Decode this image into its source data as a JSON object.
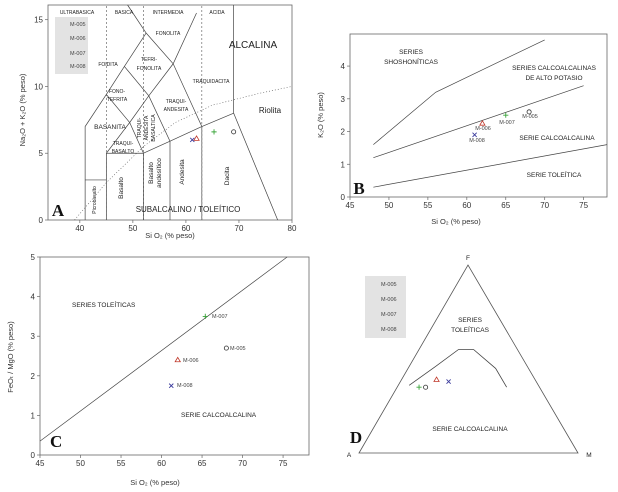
{
  "chart_data": [
    {
      "panel": "A",
      "type": "scatter",
      "xlabel": "Si O₂ (% peso)",
      "ylabel": "Na₂O + K₂O (% peso)",
      "xlim": [
        34,
        80
      ],
      "ylim": [
        0,
        16.1
      ],
      "xticks": [
        40,
        50,
        60,
        70,
        80
      ],
      "yticks": [
        0,
        5,
        10,
        15
      ],
      "legend": {
        "placement": "top-left",
        "entries": [
          "M-005",
          "M-006",
          "M-007",
          "M-008"
        ]
      },
      "header_labels": [
        "ULTRABASICA",
        "BASICA",
        "INTERMEDIA",
        "ACIDA"
      ],
      "fields": [
        "FONOLITA",
        "FOIDITA",
        "TEFRI-",
        "FONOLITA",
        "ALCALINA",
        "TRAQUIDACITA",
        "FONO-",
        "TEFRITA",
        "TRAQUI-",
        "ANDESITA",
        "Riolita",
        "BASANITA",
        "TRAQUI-",
        "BASALTO",
        "TRAQUI-",
        "ANDESITA",
        "BASALTICA",
        "Basalto",
        "andesítico",
        "Andesita",
        "Dacita",
        "Basalto",
        "Picrobasalto",
        "SUBALCALINO / TOLEÍTICO"
      ],
      "series": [
        {
          "name": "M-005",
          "marker": "circle",
          "x": [
            69
          ],
          "y": [
            6.6
          ]
        },
        {
          "name": "M-006",
          "marker": "triangle",
          "x": [
            62
          ],
          "y": [
            6.1
          ]
        },
        {
          "name": "M-007",
          "marker": "plus",
          "x": [
            65.3
          ],
          "y": [
            6.6
          ]
        },
        {
          "name": "M-008",
          "marker": "x",
          "x": [
            61.2
          ],
          "y": [
            6.0
          ]
        }
      ],
      "boundaries": [
        [
          [
            41,
            0
          ],
          [
            41,
            7
          ],
          [
            45,
            9.4
          ],
          [
            48.4,
            11.5
          ],
          [
            52.5,
            14
          ]
        ],
        [
          [
            41,
            3
          ],
          [
            45,
            3
          ]
        ],
        [
          [
            45,
            0
          ],
          [
            45,
            5
          ],
          [
            52,
            5
          ],
          [
            52,
            0
          ]
        ],
        [
          [
            52,
            5
          ],
          [
            57,
            5.9
          ],
          [
            63,
            7
          ],
          [
            69,
            8
          ]
        ],
        [
          [
            57,
            0
          ],
          [
            57,
            5.9
          ]
        ],
        [
          [
            63,
            0
          ],
          [
            63,
            7
          ]
        ],
        [
          [
            69,
            8
          ],
          [
            77.3,
            0
          ]
        ],
        [
          [
            69,
            8
          ],
          [
            69,
            16.1
          ]
        ],
        [
          [
            45,
            5
          ],
          [
            49.4,
            7.3
          ],
          [
            53,
            9.3
          ],
          [
            57.6,
            11.7
          ],
          [
            62,
            15.5
          ]
        ],
        [
          [
            52,
            5
          ],
          [
            49.4,
            7.3
          ],
          [
            45,
            9.4
          ]
        ],
        [
          [
            57,
            5.9
          ],
          [
            53,
            9.3
          ],
          [
            48.4,
            11.5
          ]
        ],
        [
          [
            63,
            7
          ],
          [
            57.6,
            11.7
          ],
          [
            52.5,
            14
          ],
          [
            49,
            16.1
          ]
        ]
      ],
      "dashed_lines": [
        [
          [
            45,
            0
          ],
          [
            45,
            16.1
          ]
        ],
        [
          [
            52,
            0
          ],
          [
            52,
            16.1
          ]
        ],
        [
          [
            63,
            0
          ],
          [
            63,
            16.1
          ]
        ]
      ],
      "dotted_lines": [
        [
          [
            39,
            0
          ],
          [
            45,
            2.8
          ],
          [
            52,
            5.5
          ],
          [
            58,
            7.3
          ],
          [
            65,
            8.6
          ],
          [
            74,
            9.5
          ],
          [
            80,
            10
          ]
        ]
      ]
    },
    {
      "panel": "B",
      "type": "scatter",
      "xlabel": "Si O₂ (% peso)",
      "ylabel": "K₂O (% peso)",
      "xlim": [
        45,
        78
      ],
      "ylim": [
        0,
        4.98
      ],
      "xticks": [
        45,
        50,
        55,
        60,
        65,
        70,
        75
      ],
      "yticks": [
        0,
        1,
        2,
        3,
        4
      ],
      "fields": [
        "SERIES",
        "SHOSHONÍTICAS",
        "SERIES CALCOALCALINAS",
        "DE ALTO POTASIO",
        "SERIE CALCOALCALINA",
        "SERIE TOLEÍTICA"
      ],
      "series": [
        {
          "name": "M-005",
          "marker": "circle",
          "x": [
            68
          ],
          "y": [
            2.6
          ]
        },
        {
          "name": "M-006",
          "marker": "triangle",
          "x": [
            62
          ],
          "y": [
            2.25
          ]
        },
        {
          "name": "M-007",
          "marker": "plus",
          "x": [
            65
          ],
          "y": [
            2.5
          ]
        },
        {
          "name": "M-008",
          "marker": "x",
          "x": [
            61
          ],
          "y": [
            1.9
          ]
        }
      ],
      "boundaries": [
        [
          [
            48,
            1.6
          ],
          [
            56,
            3.2
          ],
          [
            70,
            4.8
          ]
        ],
        [
          [
            48,
            1.2
          ],
          [
            75,
            3.4
          ]
        ],
        [
          [
            48,
            0.3
          ],
          [
            78,
            1.6
          ]
        ]
      ]
    },
    {
      "panel": "C",
      "type": "scatter",
      "xlabel": "Si O₂ (% peso)",
      "ylabel": "FeOₜ / MgO (% peso)",
      "xlim": [
        45,
        78.2
      ],
      "ylim": [
        0,
        5
      ],
      "xticks": [
        45,
        50,
        55,
        60,
        65,
        70,
        75
      ],
      "yticks": [
        0,
        1,
        2,
        3,
        4,
        5
      ],
      "fields": [
        "SERIES TOLEÍTICAS",
        "SERIE CALCOALCALINA"
      ],
      "series": [
        {
          "name": "M-005",
          "marker": "circle",
          "x": [
            68
          ],
          "y": [
            2.7
          ]
        },
        {
          "name": "M-006",
          "marker": "triangle",
          "x": [
            62
          ],
          "y": [
            2.4
          ]
        },
        {
          "name": "M-007",
          "marker": "plus",
          "x": [
            65.4
          ],
          "y": [
            3.5
          ]
        },
        {
          "name": "M-008",
          "marker": "x",
          "x": [
            61.2
          ],
          "y": [
            1.75
          ]
        }
      ],
      "boundaries": [
        [
          [
            45,
            0.35
          ],
          [
            75.5,
            5
          ]
        ]
      ]
    },
    {
      "panel": "D",
      "type": "scatter",
      "subtype": "ternary",
      "vertices": [
        "A",
        "F",
        "M"
      ],
      "fields": [
        "SERIES",
        "TOLEÍTICAS",
        "SERIE CALCOALCALINA"
      ],
      "legend": {
        "placement": "top-left",
        "entries": [
          "M-005",
          "M-006",
          "M-007",
          "M-008"
        ]
      },
      "series": [
        {
          "name": "M-005",
          "marker": "circle",
          "A": 0.52,
          "F": 0.35,
          "M": 0.13
        },
        {
          "name": "M-006",
          "marker": "triangle",
          "A": 0.45,
          "F": 0.39,
          "M": 0.16
        },
        {
          "name": "M-007",
          "marker": "plus",
          "A": 0.55,
          "F": 0.35,
          "M": 0.1
        },
        {
          "name": "M-008",
          "marker": "x",
          "A": 0.4,
          "F": 0.38,
          "M": 0.22
        }
      ],
      "boundary": [
        {
          "A": 0.59,
          "F": 0.36,
          "M": 0.05
        },
        {
          "A": 0.42,
          "F": 0.46,
          "M": 0.12
        },
        {
          "A": 0.27,
          "F": 0.55,
          "M": 0.18
        },
        {
          "A": 0.2,
          "F": 0.55,
          "M": 0.25
        },
        {
          "A": 0.15,
          "F": 0.45,
          "M": 0.4
        },
        {
          "A": 0.15,
          "F": 0.35,
          "M": 0.5
        }
      ]
    }
  ],
  "panel_letters": [
    "A",
    "B",
    "C",
    "D"
  ],
  "colors": {
    "M-005": "#333333",
    "M-006": "#c0392b",
    "M-007": "#3aa53a",
    "M-008": "#3b3b9c",
    "legend_bg": "#e3e3e3",
    "line": "#444444"
  }
}
